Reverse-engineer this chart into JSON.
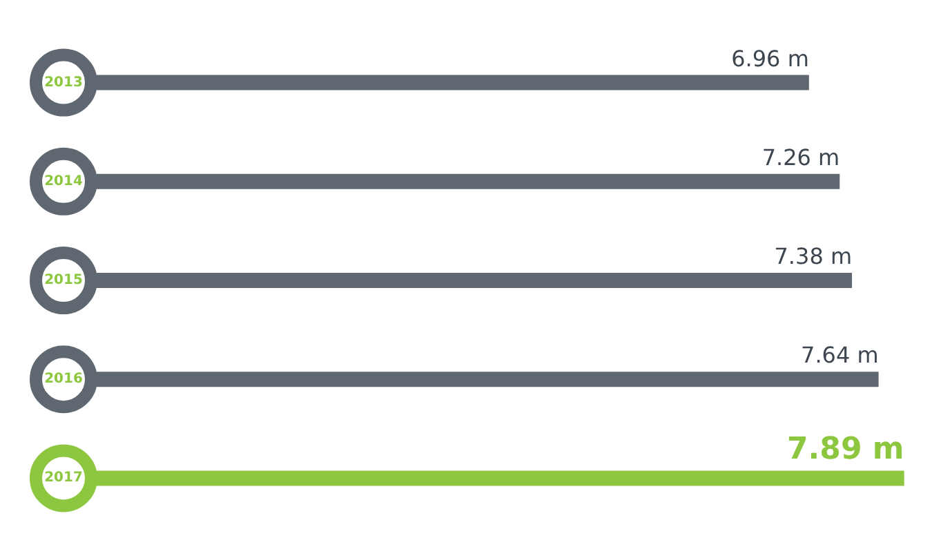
{
  "chart_data": {
    "type": "bar",
    "orientation": "horizontal",
    "categories": [
      "2013",
      "2014",
      "2015",
      "2016",
      "2017"
    ],
    "values": [
      6.96,
      7.26,
      7.38,
      7.64,
      7.89
    ],
    "value_labels": [
      "6.96 m",
      "7.26 m",
      "7.38 m",
      "7.64 m",
      "7.89 m"
    ],
    "colors": [
      "#5f6870",
      "#5f6870",
      "#5f6870",
      "#5f6870",
      "#8dc63f"
    ],
    "tick_labels": false
  }
}
